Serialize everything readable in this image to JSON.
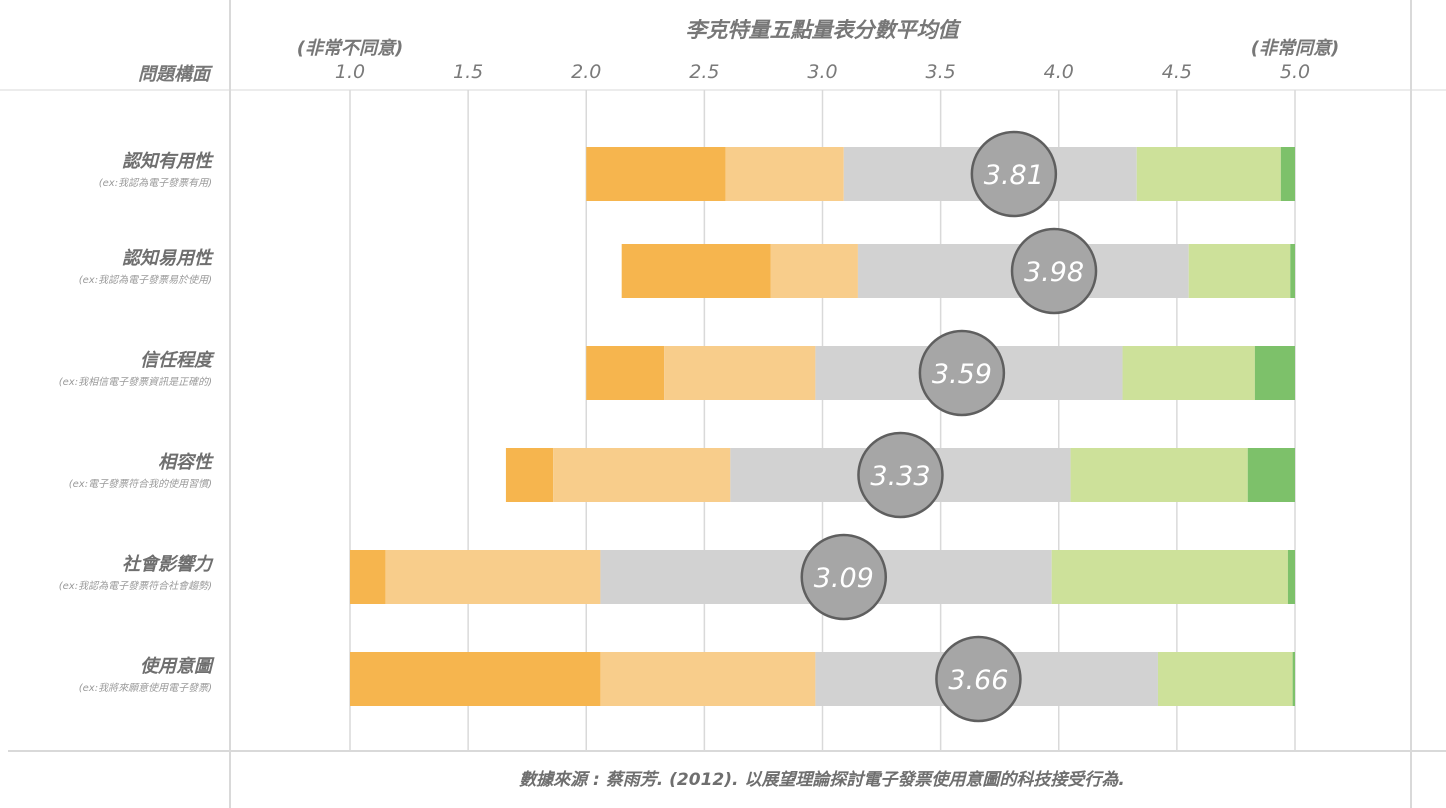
{
  "chart_data": {
    "type": "bar",
    "subtype": "stacked-diverging-likert-with-mean",
    "title": "李克特量五點量表分數平均值",
    "row_header": "問題構面",
    "axis_left_label": "(非常不同意)",
    "axis_right_label": "(非常同意)",
    "xlim": [
      1.0,
      5.0
    ],
    "ticks": [
      "1.0",
      "1.5",
      "2.0",
      "2.5",
      "3.0",
      "3.5",
      "4.0",
      "4.5",
      "5.0"
    ],
    "tick_values": [
      1.0,
      1.5,
      2.0,
      2.5,
      3.0,
      3.5,
      4.0,
      4.5,
      5.0
    ],
    "grid": true,
    "segment_colors": [
      "#f6b54e",
      "#f8cd8b",
      "#d2d2d2",
      "#cde19a",
      "#7dc16a"
    ],
    "mean_marker_color": "#a6a6a6",
    "categories": [
      {
        "name": "認知有用性",
        "example": "(ex:我認為電子發票有用)",
        "mean": 3.81,
        "mean_label": "3.81",
        "segments": [
          [
            2.0,
            2.59
          ],
          [
            2.59,
            3.09
          ],
          [
            3.09,
            4.33
          ],
          [
            4.33,
            4.94
          ],
          [
            4.94,
            5.0
          ]
        ]
      },
      {
        "name": "認知易用性",
        "example": "(ex:我認為電子發票易於使用)",
        "mean": 3.98,
        "mean_label": "3.98",
        "segments": [
          [
            2.15,
            2.78
          ],
          [
            2.78,
            3.15
          ],
          [
            3.15,
            4.55
          ],
          [
            4.55,
            4.98
          ],
          [
            4.98,
            5.0
          ]
        ]
      },
      {
        "name": "信任程度",
        "example": "(ex:我相信電子發票資訊是正確的)",
        "mean": 3.59,
        "mean_label": "3.59",
        "segments": [
          [
            2.0,
            2.33
          ],
          [
            2.33,
            2.97
          ],
          [
            2.97,
            4.27
          ],
          [
            4.27,
            4.83
          ],
          [
            4.83,
            5.0
          ]
        ]
      },
      {
        "name": "相容性",
        "example": "(ex:電子發票符合我的使用習慣)",
        "mean": 3.33,
        "mean_label": "3.33",
        "segments": [
          [
            1.66,
            1.86
          ],
          [
            1.86,
            2.61
          ],
          [
            2.61,
            4.05
          ],
          [
            4.05,
            4.8
          ],
          [
            4.8,
            5.0
          ]
        ]
      },
      {
        "name": "社會影響力",
        "example": "(ex:我認為電子發票符合社會趨勢)",
        "mean": 3.09,
        "mean_label": "3.09",
        "segments": [
          [
            1.0,
            1.15
          ],
          [
            1.15,
            2.06
          ],
          [
            2.06,
            3.97
          ],
          [
            3.97,
            4.97
          ],
          [
            4.97,
            5.0
          ]
        ]
      },
      {
        "name": "使用意圖",
        "example": "(ex:我將來願意使用電子發票)",
        "mean": 3.66,
        "mean_label": "3.66",
        "segments": [
          [
            1.0,
            2.06
          ],
          [
            2.06,
            2.97
          ],
          [
            2.97,
            4.42
          ],
          [
            4.42,
            4.99
          ],
          [
            4.99,
            5.0
          ]
        ]
      }
    ]
  },
  "footer": {
    "source": "數據來源 : 蔡雨芳. (2012). 以展望理論探討電子發票使用意圖的科技接受行為."
  }
}
